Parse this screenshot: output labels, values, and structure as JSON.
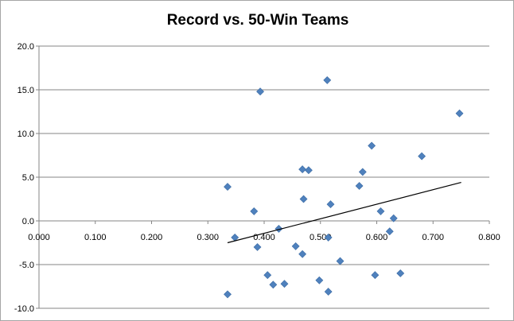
{
  "chart_data": {
    "type": "scatter",
    "title": "Record vs. 50-Win Teams",
    "xlabel": "",
    "ylabel": "",
    "xlim": [
      0.0,
      0.8
    ],
    "ylim": [
      -10.0,
      20.0
    ],
    "x_ticks": [
      "0.000",
      "0.100",
      "0.200",
      "0.300",
      "0.400",
      "0.500",
      "0.600",
      "0.700",
      "0.800"
    ],
    "y_ticks": [
      "20.0",
      "15.0",
      "10.0",
      "5.0",
      "0.0",
      "-5.0",
      "-10.0"
    ],
    "grid": "horizontal",
    "legend": "none",
    "marker": "diamond",
    "marker_color": "#4f81bd",
    "trendline": {
      "type": "linear",
      "x": [
        0.335,
        0.75
      ],
      "y": [
        -2.5,
        4.4
      ],
      "color": "#000000"
    },
    "points": [
      {
        "x": 0.335,
        "y": 3.9
      },
      {
        "x": 0.335,
        "y": -8.4
      },
      {
        "x": 0.348,
        "y": -1.9
      },
      {
        "x": 0.382,
        "y": 1.1
      },
      {
        "x": 0.388,
        "y": -3.0
      },
      {
        "x": 0.393,
        "y": 14.8
      },
      {
        "x": 0.406,
        "y": -6.2
      },
      {
        "x": 0.416,
        "y": -7.3
      },
      {
        "x": 0.426,
        "y": -0.9
      },
      {
        "x": 0.436,
        "y": -7.2
      },
      {
        "x": 0.456,
        "y": -2.9
      },
      {
        "x": 0.468,
        "y": -3.8
      },
      {
        "x": 0.468,
        "y": 5.9
      },
      {
        "x": 0.47,
        "y": 2.5
      },
      {
        "x": 0.479,
        "y": 5.8
      },
      {
        "x": 0.498,
        "y": -6.8
      },
      {
        "x": 0.512,
        "y": 16.1
      },
      {
        "x": 0.514,
        "y": -1.9
      },
      {
        "x": 0.514,
        "y": -8.1
      },
      {
        "x": 0.518,
        "y": 1.9
      },
      {
        "x": 0.535,
        "y": -4.6
      },
      {
        "x": 0.569,
        "y": 4.0
      },
      {
        "x": 0.575,
        "y": 5.6
      },
      {
        "x": 0.591,
        "y": 8.6
      },
      {
        "x": 0.597,
        "y": -6.2
      },
      {
        "x": 0.607,
        "y": 1.1
      },
      {
        "x": 0.623,
        "y": -1.2
      },
      {
        "x": 0.63,
        "y": 0.3
      },
      {
        "x": 0.642,
        "y": -6.0
      },
      {
        "x": 0.68,
        "y": 7.4
      },
      {
        "x": 0.747,
        "y": 12.3
      }
    ]
  }
}
